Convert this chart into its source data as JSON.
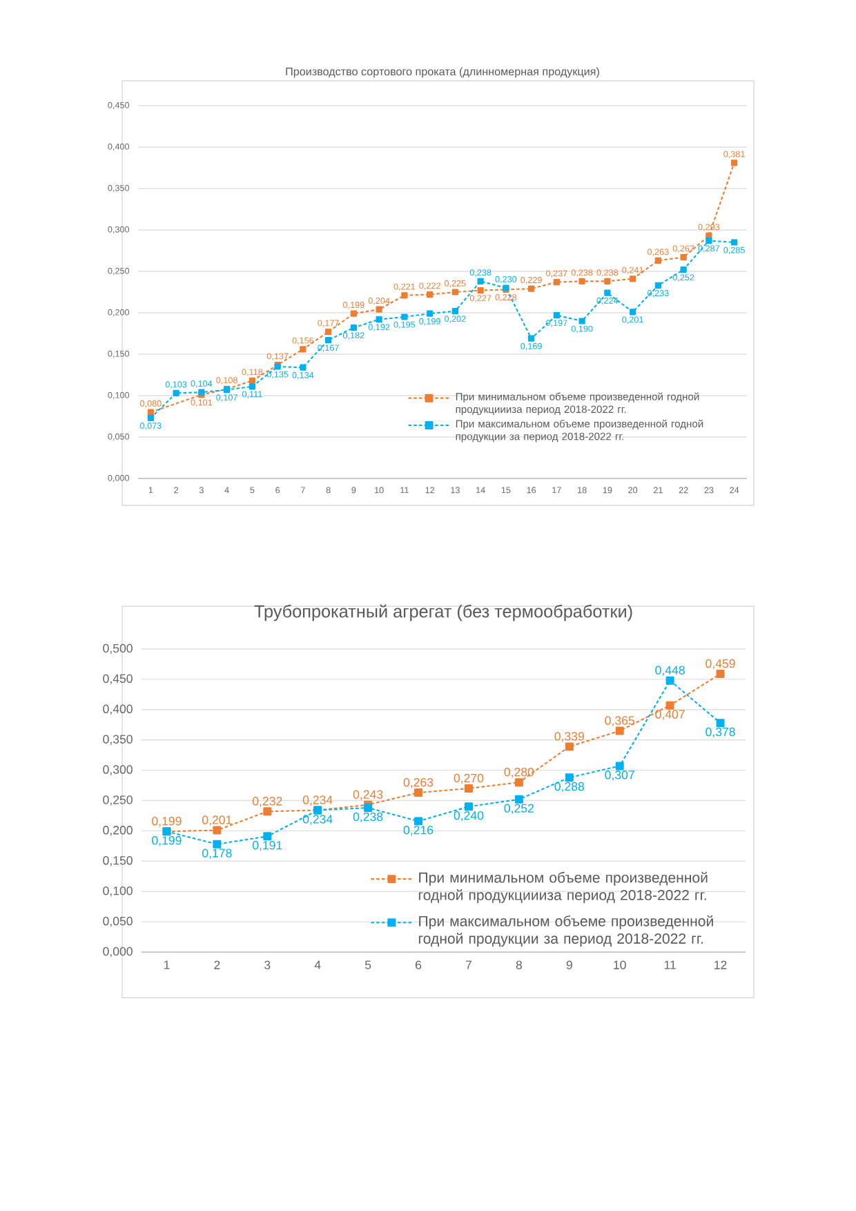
{
  "chart_data": [
    {
      "type": "line",
      "title": "Производство сортового проката (длинномерная продукция)",
      "categories": [
        "1",
        "2",
        "3",
        "4",
        "5",
        "6",
        "7",
        "8",
        "9",
        "10",
        "11",
        "12",
        "13",
        "14",
        "15",
        "16",
        "17",
        "18",
        "19",
        "20",
        "21",
        "22",
        "23",
        "24"
      ],
      "series": [
        {
          "name": "При минимальном объеме произведенной годной продукциииза период 2018-2022 гг.",
          "color": "#ed7d31",
          "values": [
            0.08,
            null,
            0.101,
            0.108,
            0.118,
            0.137,
            0.156,
            0.177,
            0.199,
            0.204,
            0.221,
            0.222,
            0.225,
            0.227,
            0.228,
            0.229,
            0.237,
            0.238,
            0.238,
            0.241,
            0.263,
            0.267,
            0.293,
            0.381
          ],
          "value_labels": [
            "0,080",
            null,
            "0,101",
            "0,108",
            "0,118",
            "0,137",
            "0,156",
            "0,177",
            "0,199",
            "0,204",
            "0,221",
            "0,222",
            "0,225",
            "0,227",
            "0,228",
            "0,229",
            "0,237",
            "0,238",
            "0,238",
            "0,241",
            "0,263",
            "0,267",
            "0,293",
            "0,381"
          ]
        },
        {
          "name": "При максимальном объеме произведенной годной продукции за период 2018-2022 гг.",
          "color": "#00b0f0",
          "values": [
            0.073,
            0.103,
            0.104,
            0.107,
            0.111,
            0.135,
            0.134,
            0.167,
            0.182,
            0.192,
            0.195,
            0.199,
            0.202,
            0.238,
            0.23,
            0.169,
            0.197,
            0.19,
            0.224,
            0.201,
            0.233,
            0.252,
            0.287,
            0.285
          ],
          "value_labels": [
            "0,073",
            "0,103",
            "0,104",
            "0,107",
            "0,111",
            "0,135",
            "0,134",
            "0,167",
            "0,182",
            "0,192",
            "0,195",
            "0,199",
            "0,202",
            "0,238",
            "0,230",
            "0,169",
            "0,197",
            "0,190",
            "0,224",
            "0,201",
            "0,233",
            "0,252",
            "0,287",
            "0,285"
          ]
        }
      ],
      "ylim": [
        0,
        0.45
      ],
      "yticks": [
        {
          "value": 0,
          "label": "0,000"
        },
        {
          "value": 0.05,
          "label": "0,050"
        },
        {
          "value": 0.1,
          "label": "0,100"
        },
        {
          "value": 0.15,
          "label": "0,150"
        },
        {
          "value": 0.2,
          "label": "0,200"
        },
        {
          "value": 0.25,
          "label": "0,250"
        },
        {
          "value": 0.3,
          "label": "0,300"
        },
        {
          "value": 0.35,
          "label": "0,350"
        },
        {
          "value": 0.4,
          "label": "0,400"
        },
        {
          "value": 0.45,
          "label": "0,450"
        }
      ],
      "grid": "y",
      "legend": "bottom right",
      "marker": "square",
      "line_style": "dashed"
    },
    {
      "type": "line",
      "title": "Трубопрокатный агрегат (без термообработки)",
      "categories": [
        "1",
        "2",
        "3",
        "4",
        "5",
        "6",
        "7",
        "8",
        "9",
        "10",
        "11",
        "12"
      ],
      "series": [
        {
          "name": "При минимальном объеме произведенной годной продукциииза период 2018-2022 гг.",
          "color": "#ed7d31",
          "values": [
            0.199,
            0.201,
            0.232,
            0.234,
            0.243,
            0.263,
            0.27,
            0.28,
            0.339,
            0.365,
            0.407,
            0.459
          ],
          "value_labels": [
            "0,199",
            "0,201",
            "0,232",
            "0,234",
            "0,243",
            "0,263",
            "0,270",
            "0,280",
            "0,339",
            "0,365",
            "0,407",
            "0,459"
          ]
        },
        {
          "name": "При максимальном объеме произведенной годной продукции за период 2018-2022 гг.",
          "color": "#00b0f0",
          "values": [
            0.199,
            0.178,
            0.191,
            0.234,
            0.238,
            0.216,
            0.24,
            0.252,
            0.288,
            0.307,
            0.448,
            0.378
          ],
          "value_labels": [
            "0,199",
            "0,178",
            "0,191",
            "0,234",
            "0,238",
            "0,216",
            "0,240",
            "0,252",
            "0,288",
            "0,307",
            "0,448",
            "0,378"
          ]
        }
      ],
      "ylim": [
        0,
        0.5
      ],
      "yticks": [
        {
          "value": 0,
          "label": "0,000"
        },
        {
          "value": 0.05,
          "label": "0,050"
        },
        {
          "value": 0.1,
          "label": "0,100"
        },
        {
          "value": 0.15,
          "label": "0,150"
        },
        {
          "value": 0.2,
          "label": "0,200"
        },
        {
          "value": 0.25,
          "label": "0,250"
        },
        {
          "value": 0.3,
          "label": "0,300"
        },
        {
          "value": 0.35,
          "label": "0,350"
        },
        {
          "value": 0.4,
          "label": "0,400"
        },
        {
          "value": 0.45,
          "label": "0,450"
        },
        {
          "value": 0.5,
          "label": "0,500"
        }
      ],
      "grid": "y",
      "legend": "bottom right",
      "marker": "square",
      "line_style": "dashed"
    }
  ]
}
